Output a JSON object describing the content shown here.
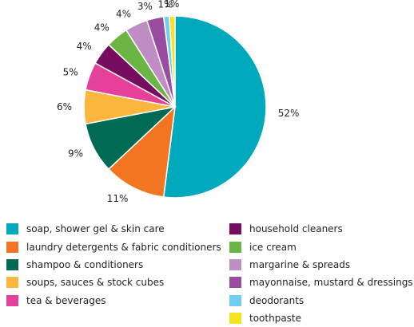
{
  "chart_data": {
    "type": "pie",
    "start": "12 o'clock",
    "direction": "clockwise",
    "slices": [
      {
        "label": "soap, shower gel & skin care",
        "value": 52,
        "value_label": "52%",
        "color": "#00a9bc"
      },
      {
        "label": "laundry detergents & fabric conditioners",
        "value": 11,
        "value_label": "11%",
        "color": "#f47521"
      },
      {
        "label": "shampoo & conditioners",
        "value": 9,
        "value_label": "9%",
        "color": "#006a55"
      },
      {
        "label": "soups, sauces & stock cubes",
        "value": 6,
        "value_label": "6%",
        "color": "#fbb63d"
      },
      {
        "label": "tea & beverages",
        "value": 5,
        "value_label": "5%",
        "color": "#e5409a"
      },
      {
        "label": "household cleaners",
        "value": 4,
        "value_label": "4%",
        "color": "#760d5f"
      },
      {
        "label": "ice cream",
        "value": 4,
        "value_label": "4%",
        "color": "#6bb545"
      },
      {
        "label": "margarine & spreads",
        "value": 4,
        "value_label": "4%",
        "color": "#bf8dc3"
      },
      {
        "label": "mayonnaise, mustard & dressings",
        "value": 3,
        "value_label": "3%",
        "color": "#9a4da0"
      },
      {
        "label": "deodorants",
        "value": 1,
        "value_label": "1%",
        "color": "#6fcff2"
      },
      {
        "label": "toothpaste",
        "value": 1,
        "value_label": "1%",
        "color": "#f3e51f"
      }
    ],
    "legend": {
      "placement": "bottom, two columns",
      "columns": [
        [
          "soap, shower gel & skin care",
          "laundry detergents & fabric conditioners",
          "shampoo & conditioners",
          "soups, sauces & stock cubes",
          "tea & beverages"
        ],
        [
          "household cleaners",
          "ice cream",
          "margarine & spreads",
          "mayonnaise, mustard & dressings",
          "deodorants",
          "toothpaste"
        ]
      ]
    }
  }
}
